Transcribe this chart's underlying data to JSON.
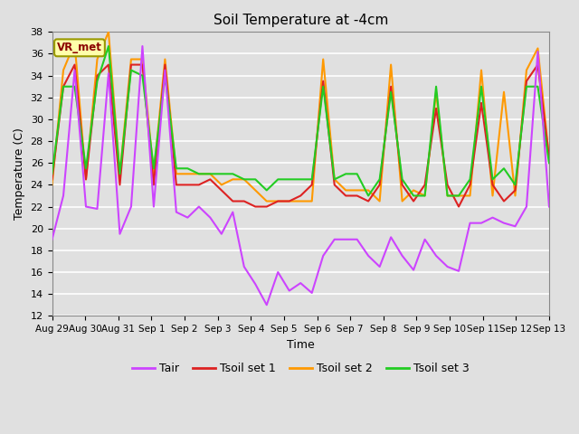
{
  "title": "Soil Temperature at -4cm",
  "xlabel": "Time",
  "ylabel": "Temperature (C)",
  "ylim": [
    12,
    38
  ],
  "background_color": "#e0e0e0",
  "plot_bg_color": "#e0e0e0",
  "grid_color": "white",
  "colors": {
    "Tair": "#cc44ff",
    "Tsoil set 1": "#dd2222",
    "Tsoil set 2": "#ff9900",
    "Tsoil set 3": "#22cc22"
  },
  "legend_labels": [
    "Tair",
    "Tsoil set 1",
    "Tsoil set 2",
    "Tsoil set 3"
  ],
  "vr_met_label": "VR_met",
  "x_tick_labels": [
    "Aug 29",
    "Aug 30",
    "Aug 31",
    "Sep 1",
    "Sep 2",
    "Sep 3",
    "Sep 4",
    "Sep 5",
    "Sep 6",
    "Sep 7",
    "Sep 8",
    "Sep 9",
    "Sep 10",
    "Sep 11",
    "Sep 12",
    "Sep 13"
  ],
  "x_tick_positions": [
    0,
    1,
    2,
    3,
    4,
    5,
    6,
    7,
    8,
    9,
    10,
    11,
    12,
    13,
    14,
    15
  ],
  "yticks": [
    12,
    14,
    16,
    18,
    20,
    22,
    24,
    26,
    28,
    30,
    32,
    34,
    36,
    38
  ],
  "Tair": [
    19.0,
    23.0,
    34.5,
    22.0,
    21.8,
    34.2,
    19.5,
    22.0,
    36.7,
    22.0,
    34.5,
    21.5,
    21.0,
    22.0,
    21.0,
    19.5,
    21.5,
    16.5,
    14.9,
    13.0,
    16.0,
    14.3,
    15.0,
    14.1,
    17.5,
    19.0,
    19.0,
    19.0,
    17.5,
    16.5,
    19.2,
    17.5,
    16.2,
    19.0,
    17.5,
    16.5,
    16.1,
    20.5,
    20.5,
    21.0,
    20.5,
    20.2,
    22.0,
    36.2,
    22.0
  ],
  "Tsoil1": [
    24.5,
    33.0,
    35.0,
    24.5,
    34.0,
    35.0,
    24.0,
    35.0,
    35.0,
    24.0,
    35.0,
    24.0,
    24.0,
    24.0,
    24.5,
    23.5,
    22.5,
    22.5,
    22.0,
    22.0,
    22.5,
    22.5,
    23.0,
    24.0,
    33.5,
    24.0,
    23.0,
    23.0,
    22.5,
    24.0,
    33.0,
    24.0,
    22.5,
    24.0,
    31.0,
    24.0,
    22.0,
    24.0,
    31.5,
    24.0,
    22.5,
    23.5,
    33.5,
    35.0,
    26.5
  ],
  "Tsoil2": [
    24.0,
    34.5,
    37.0,
    24.5,
    35.5,
    38.0,
    25.0,
    35.5,
    35.5,
    25.0,
    35.5,
    25.0,
    25.0,
    25.0,
    25.0,
    24.0,
    24.5,
    24.5,
    23.5,
    22.5,
    22.5,
    22.5,
    22.5,
    22.5,
    35.5,
    24.5,
    23.5,
    23.5,
    23.5,
    22.5,
    35.0,
    22.5,
    23.5,
    23.0,
    32.5,
    23.0,
    23.0,
    23.0,
    34.5,
    23.0,
    32.5,
    23.0,
    34.5,
    36.5,
    26.5
  ],
  "Tsoil3": [
    25.0,
    33.0,
    33.0,
    25.5,
    33.5,
    36.7,
    25.0,
    34.5,
    34.0,
    25.5,
    34.0,
    25.5,
    25.5,
    25.0,
    25.0,
    25.0,
    25.0,
    24.5,
    24.5,
    23.5,
    24.5,
    24.5,
    24.5,
    24.5,
    33.0,
    24.5,
    25.0,
    25.0,
    23.0,
    24.5,
    32.5,
    24.5,
    23.0,
    23.0,
    33.0,
    23.0,
    23.0,
    24.5,
    33.0,
    24.5,
    25.5,
    24.0,
    33.0,
    33.0,
    26.0
  ],
  "n_points": 45,
  "figsize": [
    6.4,
    4.8
  ],
  "dpi": 100
}
